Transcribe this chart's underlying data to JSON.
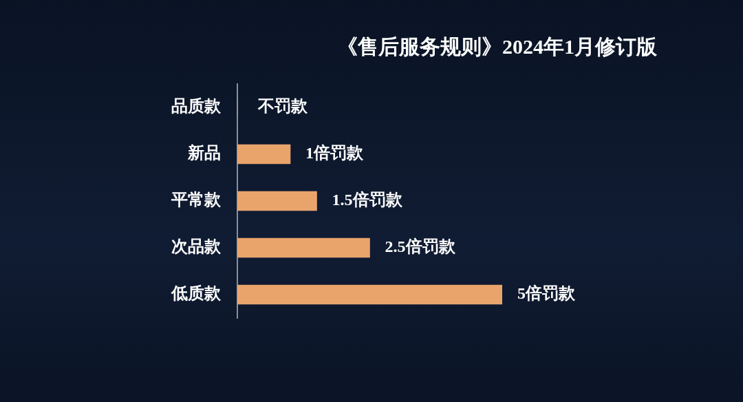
{
  "chart_data": {
    "type": "bar",
    "orientation": "horizontal",
    "title": "《售后服务规则》2024年1月修订版",
    "categories": [
      "品质款",
      "新品",
      "平常款",
      "次品款",
      "低质款"
    ],
    "values": [
      0,
      1,
      1.5,
      2.5,
      5
    ],
    "value_labels": [
      "不罚款",
      "1倍罚款",
      "1.5倍罚款",
      "2.5倍罚款",
      "5倍罚款"
    ],
    "color": "#e9a46c",
    "grid": false,
    "legend": false
  }
}
